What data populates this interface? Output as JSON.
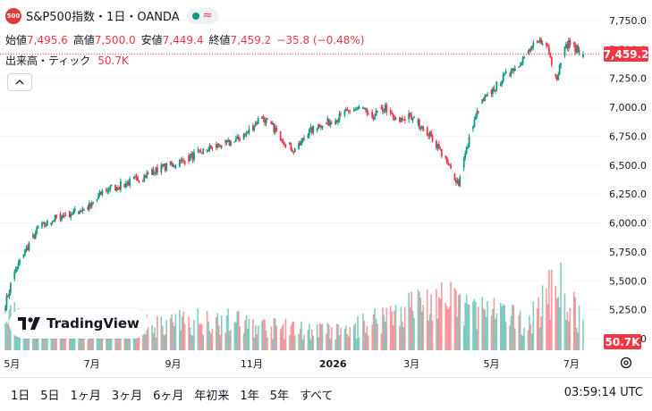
{
  "header": {
    "symbol_badge": "500",
    "title": "S&P500指数・1日・OANDA",
    "status_icon": "market-open-dot",
    "wave_icon": "≈"
  },
  "ohlc": {
    "open_label": "始値",
    "open": "7,495.6",
    "high_label": "高値",
    "high": "7,500.0",
    "low_label": "安値",
    "low": "7,449.4",
    "close_label": "終値",
    "close": "7,459.2",
    "change": "−35.8 (−0.48%)"
  },
  "volume_legend": {
    "label": "出来高・ティック",
    "value": "50.7K"
  },
  "collapse_icon": "chevron-up",
  "last_price_tag": "7,459.2",
  "volume_tag": "50.7K",
  "logo_text": "TradingView",
  "timeframes": [
    "1日",
    "5日",
    "1ヶ月",
    "3ヶ月",
    "6ヶ月",
    "年初来",
    "1年",
    "5年",
    "すべて"
  ],
  "clock": "03:59:14 UTC",
  "colors": {
    "up": "#089981",
    "down": "#f23645",
    "grid": "#f0f3fa"
  },
  "chart_data": {
    "type": "candlestick",
    "y_axis_ticks": [
      "7,750.0",
      "7,500.0",
      "7,250.0",
      "7,000.0",
      "6,750.0",
      "6,500.0",
      "6,250.0",
      "6,000.0",
      "5,750.0",
      "5,500.0",
      "5,250.0",
      "5,000.0"
    ],
    "y_tick_values": [
      7750,
      7500,
      7250,
      7000,
      6750,
      6500,
      6250,
      6000,
      5750,
      5500,
      5250,
      5000
    ],
    "ylim": [
      4900,
      7850
    ],
    "x_axis_labels": [
      "5月",
      "7月",
      "9月",
      "11月",
      "2026",
      "3月",
      "5月",
      "7月"
    ],
    "x_axis_label_days": [
      5,
      66,
      128,
      188,
      250,
      310,
      371,
      432
    ],
    "last_close": 7459.2,
    "keypoints": [
      [
        0,
        5300
      ],
      [
        5,
        5500
      ],
      [
        12,
        5700
      ],
      [
        25,
        5950
      ],
      [
        40,
        6050
      ],
      [
        55,
        6100
      ],
      [
        66,
        6150
      ],
      [
        75,
        6280
      ],
      [
        90,
        6330
      ],
      [
        105,
        6400
      ],
      [
        120,
        6480
      ],
      [
        135,
        6530
      ],
      [
        150,
        6620
      ],
      [
        165,
        6680
      ],
      [
        175,
        6700
      ],
      [
        185,
        6780
      ],
      [
        195,
        6920
      ],
      [
        205,
        6820
      ],
      [
        215,
        6680
      ],
      [
        222,
        6620
      ],
      [
        230,
        6770
      ],
      [
        240,
        6850
      ],
      [
        250,
        6880
      ],
      [
        260,
        6950
      ],
      [
        270,
        6990
      ],
      [
        280,
        6920
      ],
      [
        290,
        7000
      ],
      [
        298,
        6880
      ],
      [
        308,
        6920
      ],
      [
        318,
        6840
      ],
      [
        328,
        6700
      ],
      [
        335,
        6560
      ],
      [
        342,
        6420
      ],
      [
        346,
        6340
      ],
      [
        350,
        6550
      ],
      [
        356,
        6800
      ],
      [
        362,
        7020
      ],
      [
        372,
        7150
      ],
      [
        382,
        7280
      ],
      [
        392,
        7380
      ],
      [
        402,
        7520
      ],
      [
        410,
        7580
      ],
      [
        414,
        7520
      ],
      [
        418,
        7350
      ],
      [
        421,
        7250
      ],
      [
        425,
        7460
      ],
      [
        430,
        7560
      ],
      [
        436,
        7500
      ],
      [
        441,
        7459
      ]
    ],
    "volume_keypoints": [
      [
        0,
        40
      ],
      [
        40,
        22
      ],
      [
        100,
        25
      ],
      [
        160,
        35
      ],
      [
        200,
        25
      ],
      [
        260,
        20
      ],
      [
        300,
        45
      ],
      [
        330,
        55
      ],
      [
        360,
        45
      ],
      [
        400,
        30
      ],
      [
        420,
        75
      ],
      [
        441,
        30
      ]
    ]
  }
}
